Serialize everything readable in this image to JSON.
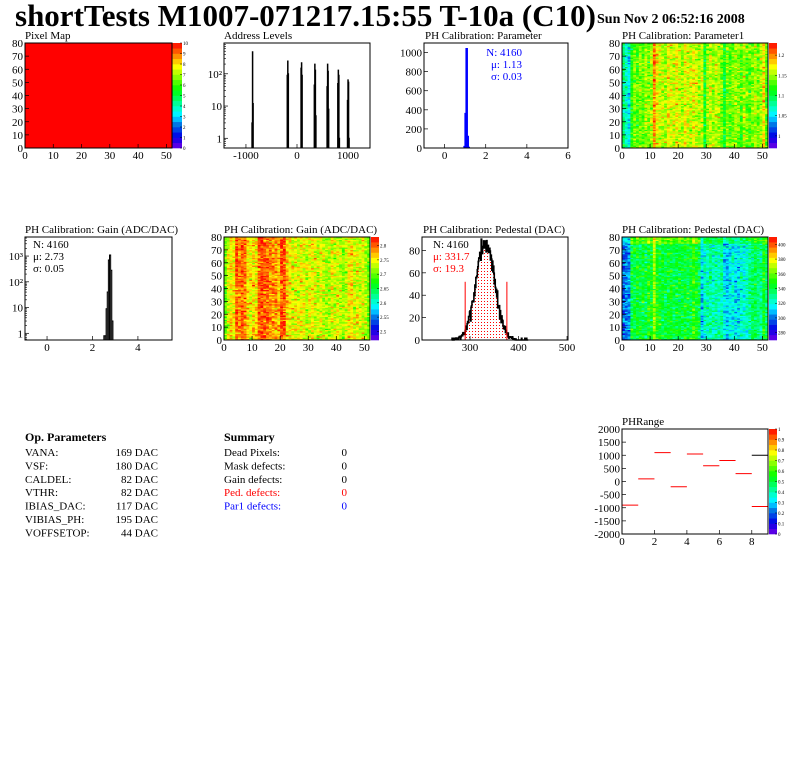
{
  "title": "shortTests M1007-071217.15:55 T-10a (C10)",
  "date": "Sun Nov  2 06:52:16 2008",
  "colors": {
    "hist_line": "#000000",
    "param_hist": "#0000ff",
    "stat_red": "#ff0000",
    "stat_blue": "#0000ff",
    "cut_line": "#ff0000",
    "phrange_line": "#ff0000"
  },
  "chart_data": [
    {
      "id": "pixel-map",
      "type": "heatmap",
      "title": "Pixel Map",
      "xlim": [
        0,
        52
      ],
      "ylim": [
        0,
        80
      ],
      "xticks": [
        0,
        10,
        20,
        30,
        40,
        50
      ],
      "yticks": [
        0,
        10,
        20,
        30,
        40,
        50,
        60,
        70,
        80
      ],
      "zlim": [
        0,
        10
      ],
      "ztick_labels": [
        "0",
        "1",
        "2",
        "3",
        "4",
        "5",
        "6",
        "7",
        "8",
        "9",
        "10"
      ],
      "uniform_value": 10
    },
    {
      "id": "address-levels",
      "type": "bar",
      "title": "Address Levels",
      "xlim": [
        -1430,
        1430
      ],
      "ylim": [
        0.5,
        900
      ],
      "ylog": true,
      "xticks": [
        -1000,
        0,
        1000
      ],
      "xtick_labels": [
        "-1000",
        "0",
        "1000"
      ],
      "yticks": [
        1,
        10,
        100
      ],
      "ytick_labels": [
        "1",
        "10",
        "10²"
      ],
      "bin_width": 10,
      "bins": [
        [
          -880,
          3
        ],
        [
          -870,
          480
        ],
        [
          -860,
          12
        ],
        [
          -190,
          90
        ],
        [
          -180,
          250
        ],
        [
          -170,
          100
        ],
        [
          80,
          150
        ],
        [
          90,
          220
        ],
        [
          100,
          90
        ],
        [
          340,
          45
        ],
        [
          350,
          200
        ],
        [
          360,
          130
        ],
        [
          370,
          5
        ],
        [
          590,
          40
        ],
        [
          600,
          200
        ],
        [
          610,
          120
        ],
        [
          620,
          8
        ],
        [
          800,
          50
        ],
        [
          810,
          130
        ],
        [
          820,
          90
        ],
        [
          830,
          1
        ],
        [
          990,
          15
        ],
        [
          1000,
          65
        ],
        [
          1010,
          55
        ],
        [
          1020,
          1
        ]
      ]
    },
    {
      "id": "ph-parameter",
      "type": "bar",
      "title": "PH Calibration: Parameter",
      "xlim": [
        -1,
        6
      ],
      "ylim": [
        0,
        1100
      ],
      "xticks": [
        0,
        2,
        4,
        6
      ],
      "yticks": [
        0,
        200,
        400,
        600,
        800,
        1000
      ],
      "bin_width": 0.05,
      "bins": [
        [
          0.975,
          15
        ],
        [
          1.025,
          360
        ],
        [
          1.075,
          1040
        ],
        [
          1.125,
          120
        ],
        [
          1.175,
          5
        ]
      ],
      "stats": [
        "N: 4160",
        "μ: 1.13",
        "σ: 0.03"
      ]
    },
    {
      "id": "ph-parameter1",
      "type": "heatmap",
      "title": "PH Calibration: Parameter1",
      "xlim": [
        0,
        52
      ],
      "ylim": [
        0,
        80
      ],
      "xticks": [
        0,
        10,
        20,
        30,
        40,
        50
      ],
      "yticks": [
        0,
        10,
        20,
        30,
        40,
        50,
        60,
        70,
        80
      ],
      "zlim": [
        0.97,
        1.23
      ],
      "ztick_labels": [
        "1",
        "1.05",
        "1.1",
        "1.15",
        "1.2"
      ],
      "ztick_values": [
        1,
        1.05,
        1.1,
        1.15,
        1.2
      ],
      "column_means": [
        1.09,
        1.07,
        1.06,
        1.12,
        1.14,
        1.13,
        1.14,
        1.13,
        1.15,
        1.14,
        1.15,
        1.2,
        1.17,
        1.16,
        1.16,
        1.15,
        1.17,
        1.16,
        1.16,
        1.17,
        1.16,
        1.15,
        1.17,
        1.16,
        1.16,
        1.17,
        1.16,
        1.15,
        1.16,
        1.11,
        1.15,
        1.16,
        1.15,
        1.16,
        1.15,
        1.14,
        1.11,
        1.14,
        1.13,
        1.14,
        1.15,
        1.14,
        1.13,
        1.15,
        1.14,
        1.13,
        1.14,
        1.15,
        1.14,
        1.15,
        1.18,
        1.13
      ]
    },
    {
      "id": "gain-hist",
      "type": "bar",
      "title": "PH Calibration: Gain (ADC/DAC)",
      "xlim": [
        -0.97,
        5.5
      ],
      "ylim": [
        0.55,
        5500
      ],
      "ylog": true,
      "xticks": [
        0,
        2,
        4
      ],
      "yticks": [
        1,
        10,
        100,
        1000
      ],
      "ytick_labels": [
        "1",
        "10",
        "10²",
        "10³"
      ],
      "bin_width": 0.05,
      "bins": [
        [
          2.525,
          0.8
        ],
        [
          2.575,
          0.8
        ],
        [
          2.625,
          9
        ],
        [
          2.675,
          40
        ],
        [
          2.725,
          700
        ],
        [
          2.775,
          1100
        ],
        [
          2.825,
          280
        ],
        [
          2.875,
          3
        ]
      ],
      "stats": [
        "N: 4160",
        "μ: 2.73",
        "σ: 0.05"
      ]
    },
    {
      "id": "gain-map",
      "type": "heatmap",
      "title": "PH Calibration: Gain (ADC/DAC)",
      "xlim": [
        0,
        52
      ],
      "ylim": [
        0,
        80
      ],
      "xticks": [
        0,
        10,
        20,
        30,
        40,
        50
      ],
      "yticks": [
        0,
        10,
        20,
        30,
        40,
        50,
        60,
        70,
        80
      ],
      "zlim": [
        2.47,
        2.83
      ],
      "ztick_labels": [
        "2.5",
        "2.55",
        "2.6",
        "2.65",
        "2.7",
        "2.75",
        "2.8"
      ],
      "ztick_values": [
        2.5,
        2.55,
        2.6,
        2.65,
        2.7,
        2.75,
        2.8
      ],
      "column_means": [
        2.7,
        2.74,
        2.76,
        2.75,
        2.8,
        2.79,
        2.8,
        2.79,
        2.76,
        2.75,
        2.76,
        2.75,
        2.8,
        2.81,
        2.8,
        2.8,
        2.79,
        2.78,
        2.78,
        2.77,
        2.81,
        2.8,
        2.76,
        2.75,
        2.74,
        2.75,
        2.74,
        2.75,
        2.74,
        2.73,
        2.74,
        2.75,
        2.74,
        2.73,
        2.74,
        2.73,
        2.72,
        2.72,
        2.74,
        2.73,
        2.74,
        2.73,
        2.72,
        2.73,
        2.75,
        2.76,
        2.73,
        2.74,
        2.73,
        2.74,
        2.72,
        2.7
      ]
    },
    {
      "id": "pedestal-hist",
      "type": "bar",
      "title": "PH Calibration: Pedestal (DAC)",
      "xlim": [
        201,
        502
      ],
      "ylim": [
        0,
        92
      ],
      "xticks": [
        300,
        400,
        500
      ],
      "yticks": [
        0,
        20,
        40,
        60,
        80
      ],
      "entries": 4160,
      "mean": 331.7,
      "sigma": 19.3,
      "cuts": [
        290,
        376
      ],
      "stats": [
        "N: 4160",
        "μ: 331.7",
        "σ: 19.3"
      ]
    },
    {
      "id": "pedestal-map",
      "type": "heatmap",
      "title": "PH Calibration: Pedestal (DAC)",
      "xlim": [
        0,
        52
      ],
      "ylim": [
        0,
        80
      ],
      "xticks": [
        0,
        10,
        20,
        30,
        40,
        50
      ],
      "yticks": [
        0,
        10,
        20,
        30,
        40,
        50,
        60,
        70,
        80
      ],
      "zlim": [
        270,
        410
      ],
      "ztick_labels": [
        "280",
        "300",
        "320",
        "340",
        "360",
        "380",
        "400"
      ],
      "ztick_values": [
        280,
        300,
        320,
        340,
        360,
        380,
        400
      ],
      "column_means": [
        300,
        300,
        305,
        340,
        340,
        345,
        340,
        342,
        340,
        345,
        343,
        365,
        348,
        345,
        342,
        340,
        343,
        345,
        340,
        342,
        343,
        340,
        345,
        342,
        343,
        352,
        345,
        340,
        310,
        325,
        325,
        330,
        325,
        328,
        325,
        330,
        315,
        312,
        318,
        320,
        315,
        318,
        322,
        320,
        325,
        330,
        335,
        338,
        333,
        330,
        345,
        335
      ]
    },
    {
      "id": "ph-range",
      "type": "line",
      "title": "PHRange",
      "xlim": [
        0,
        9
      ],
      "ylim": [
        -2000,
        2000
      ],
      "xticks": [
        0,
        2,
        4,
        6,
        8
      ],
      "yticks": [
        -2000,
        -1500,
        -1000,
        -500,
        0,
        500,
        1000,
        1500,
        2000
      ],
      "zlim": [
        0,
        1
      ],
      "ztick_labels": [
        "0",
        "0.1",
        "0.2",
        "0.3",
        "0.4",
        "0.5",
        "0.6",
        "0.7",
        "0.8",
        "0.9",
        "1"
      ],
      "ztick_values": [
        0,
        0.1,
        0.2,
        0.3,
        0.4,
        0.5,
        0.6,
        0.7,
        0.8,
        0.9,
        1
      ],
      "segments": [
        [
          0,
          -900
        ],
        [
          1,
          100
        ],
        [
          2,
          1100
        ],
        [
          3,
          -200
        ],
        [
          4,
          1050
        ],
        [
          5,
          600
        ],
        [
          6,
          800
        ],
        [
          7,
          300
        ],
        [
          8,
          1000
        ],
        [
          8,
          -950
        ]
      ]
    }
  ],
  "op_parameters": {
    "heading": "Op. Parameters",
    "rows": [
      {
        "name": "VANA:",
        "value": "169 DAC"
      },
      {
        "name": "VSF:",
        "value": "180 DAC"
      },
      {
        "name": "CALDEL:",
        "value": "82 DAC"
      },
      {
        "name": "VTHR:",
        "value": "82 DAC"
      },
      {
        "name": "IBIAS_DAC:",
        "value": "117 DAC"
      },
      {
        "name": "VIBIAS_PH:",
        "value": "195 DAC"
      },
      {
        "name": "VOFFSETOP:",
        "value": "44 DAC"
      }
    ]
  },
  "summary": {
    "heading": "Summary",
    "rows": [
      {
        "name": "Dead Pixels:",
        "value": "0",
        "color": "#000000"
      },
      {
        "name": "Mask defects:",
        "value": "0",
        "color": "#000000"
      },
      {
        "name": "Gain defects:",
        "value": "0",
        "color": "#000000"
      },
      {
        "name": "Ped. defects:",
        "value": "0",
        "color": "#ff0000"
      },
      {
        "name": "Par1 defects:",
        "value": "0",
        "color": "#0000ff"
      }
    ]
  }
}
